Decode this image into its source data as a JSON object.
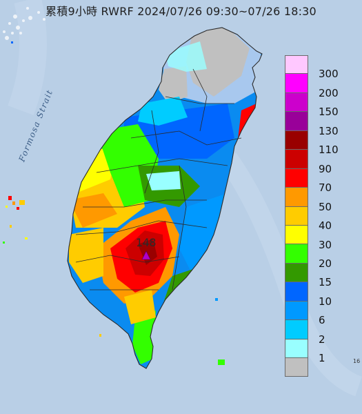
{
  "title": "累積9小時 RWRF 2024/07/26 09:30~07/26 18:30",
  "strait_label": "Formosa Strait",
  "max_value": "148",
  "edge_text": "16",
  "legend": [
    {
      "label": "300",
      "color": "#ffc8ff"
    },
    {
      "label": "200",
      "color": "#ff00ff"
    },
    {
      "label": "150",
      "color": "#cc00cc"
    },
    {
      "label": "130",
      "color": "#990099"
    },
    {
      "label": "110",
      "color": "#990000"
    },
    {
      "label": "90",
      "color": "#cc0000"
    },
    {
      "label": "70",
      "color": "#ff0000"
    },
    {
      "label": "50",
      "color": "#ff9900"
    },
    {
      "label": "40",
      "color": "#ffcc00"
    },
    {
      "label": "30",
      "color": "#ffff00"
    },
    {
      "label": "20",
      "color": "#33ff00"
    },
    {
      "label": "15",
      "color": "#339900"
    },
    {
      "label": "10",
      "color": "#0066ff"
    },
    {
      "label": "6",
      "color": "#0099ff"
    },
    {
      "label": "2",
      "color": "#00ccff"
    },
    {
      "label": "1",
      "color": "#99ffff"
    },
    {
      "label": "",
      "color": "#c0c0c0"
    }
  ],
  "legend_right_labels": [
    "300",
    "200",
    "150",
    "130",
    "110",
    "90",
    "70",
    "50",
    "40",
    "30",
    "20",
    "15",
    "10",
    "6",
    "2",
    "1"
  ],
  "colors": {
    "ocean": "#b9cfe6",
    "land_base": "#0a8bf0",
    "boundary": "#2a2a2a",
    "marker": "#b000c8"
  }
}
